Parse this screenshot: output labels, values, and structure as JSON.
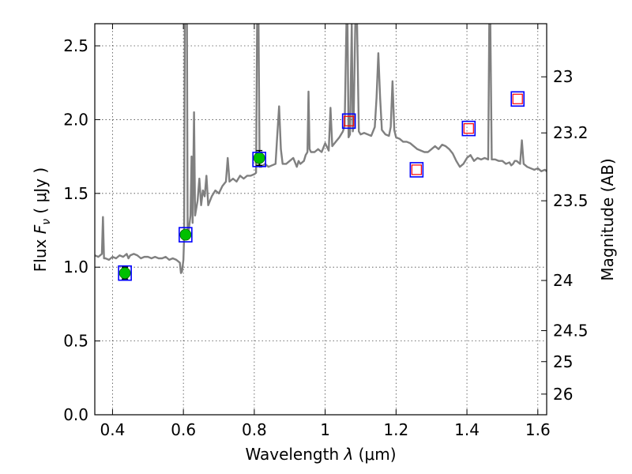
{
  "chart_data": {
    "type": "line",
    "xlabel_pre": "Wavelength  ",
    "xlabel_sym": "λ",
    "xlabel_unit": " (μm)",
    "ylabel_pre": "Flux  ",
    "ylabel_sym": "F",
    "ylabel_sub": "ν",
    "ylabel_unit": "  ( μJy )",
    "y2label": "Magnitude (AB)",
    "xlim": [
      0.35,
      1.625
    ],
    "ylim": [
      0.0,
      2.65
    ],
    "grid": true,
    "x_ticks": [
      {
        "value": 0.4,
        "label": "0.4"
      },
      {
        "value": 0.6,
        "label": "0.6"
      },
      {
        "value": 0.8,
        "label": "0.8"
      },
      {
        "value": 1.0,
        "label": "1"
      },
      {
        "value": 1.2,
        "label": "1.2"
      },
      {
        "value": 1.4,
        "label": "1.4"
      },
      {
        "value": 1.6,
        "label": "1.6"
      }
    ],
    "y_ticks": [
      {
        "value": 0.0,
        "label": "0.0"
      },
      {
        "value": 0.5,
        "label": "0.5"
      },
      {
        "value": 1.0,
        "label": "1.0"
      },
      {
        "value": 1.5,
        "label": "1.5"
      },
      {
        "value": 2.0,
        "label": "2.0"
      },
      {
        "value": 2.5,
        "label": "2.5"
      }
    ],
    "y2_ticks": [
      {
        "mag": 23,
        "flux": 2.29,
        "label": "23"
      },
      {
        "mag": 23.2,
        "flux": 1.91,
        "label": "23.2"
      },
      {
        "mag": 23.5,
        "flux": 1.45,
        "label": "23.5"
      },
      {
        "mag": 24,
        "flux": 0.91,
        "label": "24"
      },
      {
        "mag": 24.5,
        "flux": 0.57,
        "label": "24.5"
      },
      {
        "mag": 25,
        "flux": 0.36,
        "label": "25"
      },
      {
        "mag": 26,
        "flux": 0.14,
        "label": "26"
      }
    ],
    "series": [
      {
        "type": "line",
        "color": "#808080",
        "points": [
          [
            0.35,
            1.08
          ],
          [
            0.36,
            1.07
          ],
          [
            0.37,
            1.09
          ],
          [
            0.373,
            1.34
          ],
          [
            0.376,
            1.06
          ],
          [
            0.38,
            1.06
          ],
          [
            0.39,
            1.05
          ],
          [
            0.4,
            1.07
          ],
          [
            0.41,
            1.06
          ],
          [
            0.42,
            1.08
          ],
          [
            0.43,
            1.07
          ],
          [
            0.44,
            1.09
          ],
          [
            0.445,
            1.06
          ],
          [
            0.45,
            1.08
          ],
          [
            0.46,
            1.09
          ],
          [
            0.47,
            1.08
          ],
          [
            0.48,
            1.06
          ],
          [
            0.49,
            1.07
          ],
          [
            0.5,
            1.07
          ],
          [
            0.51,
            1.06
          ],
          [
            0.52,
            1.07
          ],
          [
            0.53,
            1.06
          ],
          [
            0.54,
            1.06
          ],
          [
            0.55,
            1.07
          ],
          [
            0.56,
            1.05
          ],
          [
            0.57,
            1.06
          ],
          [
            0.58,
            1.05
          ],
          [
            0.59,
            1.03
          ],
          [
            0.593,
            0.96
          ],
          [
            0.596,
            0.97
          ],
          [
            0.6,
            1.05
          ],
          [
            0.602,
            1.2
          ],
          [
            0.604,
            2.65
          ],
          [
            0.606,
            2.65
          ],
          [
            0.608,
            2.65
          ],
          [
            0.61,
            2.65
          ],
          [
            0.612,
            1.22
          ],
          [
            0.615,
            1.25
          ],
          [
            0.62,
            1.35
          ],
          [
            0.623,
            1.75
          ],
          [
            0.626,
            1.3
          ],
          [
            0.63,
            2.05
          ],
          [
            0.633,
            1.35
          ],
          [
            0.64,
            1.45
          ],
          [
            0.645,
            1.6
          ],
          [
            0.65,
            1.42
          ],
          [
            0.655,
            1.52
          ],
          [
            0.66,
            1.48
          ],
          [
            0.665,
            1.62
          ],
          [
            0.67,
            1.42
          ],
          [
            0.68,
            1.48
          ],
          [
            0.69,
            1.52
          ],
          [
            0.7,
            1.5
          ],
          [
            0.71,
            1.55
          ],
          [
            0.72,
            1.58
          ],
          [
            0.725,
            1.74
          ],
          [
            0.73,
            1.58
          ],
          [
            0.74,
            1.6
          ],
          [
            0.75,
            1.58
          ],
          [
            0.76,
            1.62
          ],
          [
            0.77,
            1.6
          ],
          [
            0.78,
            1.62
          ],
          [
            0.79,
            1.62
          ],
          [
            0.8,
            1.63
          ],
          [
            0.805,
            1.64
          ],
          [
            0.808,
            2.65
          ],
          [
            0.812,
            2.65
          ],
          [
            0.815,
            1.68
          ],
          [
            0.82,
            1.68
          ],
          [
            0.83,
            1.7
          ],
          [
            0.84,
            1.68
          ],
          [
            0.85,
            1.69
          ],
          [
            0.86,
            1.7
          ],
          [
            0.865,
            1.9
          ],
          [
            0.87,
            2.09
          ],
          [
            0.875,
            1.8
          ],
          [
            0.88,
            1.7
          ],
          [
            0.89,
            1.7
          ],
          [
            0.9,
            1.72
          ],
          [
            0.91,
            1.74
          ],
          [
            0.92,
            1.68
          ],
          [
            0.925,
            1.72
          ],
          [
            0.93,
            1.7
          ],
          [
            0.94,
            1.72
          ],
          [
            0.945,
            1.76
          ],
          [
            0.95,
            1.78
          ],
          [
            0.953,
            2.19
          ],
          [
            0.956,
            1.8
          ],
          [
            0.96,
            1.78
          ],
          [
            0.97,
            1.78
          ],
          [
            0.98,
            1.8
          ],
          [
            0.99,
            1.78
          ],
          [
            1.0,
            1.84
          ],
          [
            1.01,
            1.79
          ],
          [
            1.015,
            2.08
          ],
          [
            1.02,
            1.82
          ],
          [
            1.03,
            1.85
          ],
          [
            1.04,
            1.88
          ],
          [
            1.05,
            1.92
          ],
          [
            1.055,
            1.96
          ],
          [
            1.06,
            2.65
          ],
          [
            1.063,
            2.65
          ],
          [
            1.066,
            1.88
          ],
          [
            1.07,
            1.9
          ],
          [
            1.075,
            2.65
          ],
          [
            1.078,
            1.92
          ],
          [
            1.08,
            1.95
          ],
          [
            1.085,
            2.65
          ],
          [
            1.09,
            2.65
          ],
          [
            1.095,
            1.92
          ],
          [
            1.1,
            1.9
          ],
          [
            1.11,
            1.91
          ],
          [
            1.12,
            1.9
          ],
          [
            1.13,
            1.89
          ],
          [
            1.14,
            1.95
          ],
          [
            1.145,
            2.15
          ],
          [
            1.15,
            2.45
          ],
          [
            1.155,
            2.15
          ],
          [
            1.16,
            1.93
          ],
          [
            1.17,
            1.9
          ],
          [
            1.18,
            1.89
          ],
          [
            1.185,
            1.95
          ],
          [
            1.19,
            2.26
          ],
          [
            1.195,
            1.93
          ],
          [
            1.2,
            1.88
          ],
          [
            1.21,
            1.87
          ],
          [
            1.22,
            1.85
          ],
          [
            1.23,
            1.85
          ],
          [
            1.24,
            1.84
          ],
          [
            1.25,
            1.82
          ],
          [
            1.26,
            1.8
          ],
          [
            1.27,
            1.79
          ],
          [
            1.28,
            1.78
          ],
          [
            1.29,
            1.78
          ],
          [
            1.3,
            1.8
          ],
          [
            1.31,
            1.82
          ],
          [
            1.32,
            1.8
          ],
          [
            1.33,
            1.83
          ],
          [
            1.34,
            1.82
          ],
          [
            1.35,
            1.8
          ],
          [
            1.36,
            1.77
          ],
          [
            1.37,
            1.72
          ],
          [
            1.38,
            1.68
          ],
          [
            1.39,
            1.7
          ],
          [
            1.4,
            1.74
          ],
          [
            1.41,
            1.76
          ],
          [
            1.42,
            1.72
          ],
          [
            1.43,
            1.74
          ],
          [
            1.44,
            1.73
          ],
          [
            1.45,
            1.74
          ],
          [
            1.46,
            1.73
          ],
          [
            1.463,
            2.65
          ],
          [
            1.466,
            2.65
          ],
          [
            1.47,
            1.73
          ],
          [
            1.48,
            1.73
          ],
          [
            1.49,
            1.72
          ],
          [
            1.5,
            1.72
          ],
          [
            1.51,
            1.7
          ],
          [
            1.52,
            1.71
          ],
          [
            1.525,
            1.69
          ],
          [
            1.53,
            1.7
          ],
          [
            1.535,
            1.72
          ],
          [
            1.54,
            1.72
          ],
          [
            1.55,
            1.7
          ],
          [
            1.55,
            1.7
          ],
          [
            1.555,
            1.86
          ],
          [
            1.56,
            1.7
          ],
          [
            1.57,
            1.68
          ],
          [
            1.58,
            1.67
          ],
          [
            1.59,
            1.66
          ],
          [
            1.6,
            1.67
          ],
          [
            1.61,
            1.65
          ],
          [
            1.62,
            1.66
          ],
          [
            1.625,
            1.65
          ]
        ]
      },
      {
        "type": "scatter",
        "marker": "filled-circle-with-errorbar",
        "color": "#00c000",
        "points": [
          {
            "x": 0.435,
            "y": 0.96,
            "yerr": 0.04
          },
          {
            "x": 0.606,
            "y": 1.22,
            "yerr": 0.02
          },
          {
            "x": 0.814,
            "y": 1.74,
            "yerr": 0.05
          }
        ]
      },
      {
        "type": "scatter",
        "marker": "open-square",
        "color": "#0000ff",
        "points": [
          {
            "x": 0.435,
            "y": 0.96
          },
          {
            "x": 0.606,
            "y": 1.22
          },
          {
            "x": 0.814,
            "y": 1.73
          },
          {
            "x": 1.067,
            "y": 1.99
          },
          {
            "x": 1.258,
            "y": 1.66
          },
          {
            "x": 1.405,
            "y": 1.94
          },
          {
            "x": 1.543,
            "y": 2.14
          }
        ]
      },
      {
        "type": "scatter",
        "marker": "open-square-small",
        "color": "#ff0000",
        "points": [
          {
            "x": 1.067,
            "y": 1.99
          },
          {
            "x": 1.258,
            "y": 1.66
          },
          {
            "x": 1.405,
            "y": 1.94
          },
          {
            "x": 1.543,
            "y": 2.14
          }
        ]
      }
    ]
  }
}
